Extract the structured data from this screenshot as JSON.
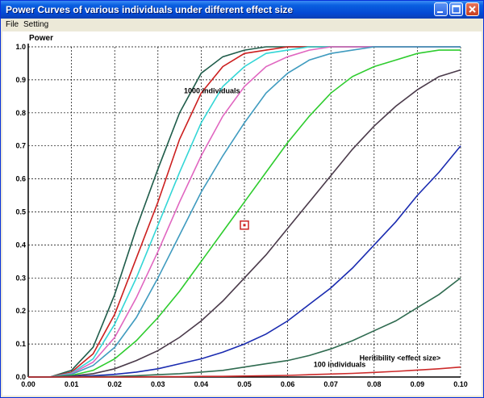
{
  "window": {
    "title": "Power Curves of various individuals under different effect size",
    "buttons": [
      "minimize",
      "maximize",
      "close"
    ]
  },
  "menu": {
    "items": [
      "File",
      "Setting"
    ]
  },
  "colors": {
    "titlebar": "#0a5fe0",
    "marker": "#cc2222"
  },
  "chart_data": {
    "type": "line",
    "ylabel": "Power",
    "xlabel": "Heritibility <effect size>",
    "xlim": [
      0.0,
      0.1
    ],
    "ylim": [
      0.0,
      1.0
    ],
    "xticks": [
      "0.00",
      "0.01",
      "0.02",
      "0.03",
      "0.04",
      "0.05",
      "0.06",
      "0.07",
      "0.08",
      "0.09",
      "0.10"
    ],
    "yticks": [
      "0.0",
      "0.1",
      "0.2",
      "0.3",
      "0.4",
      "0.5",
      "0.6",
      "0.7",
      "0.8",
      "0.9",
      "1.0"
    ],
    "grid": true,
    "annotations": [
      {
        "text": "1000 individuals",
        "x": 0.036,
        "y": 0.86
      },
      {
        "text": "100 individuals",
        "x": 0.066,
        "y": 0.03
      },
      {
        "text": "Heritibility <effect size>",
        "x": 0.086,
        "y": 0.05
      }
    ],
    "marker": {
      "x": 0.05,
      "y": 0.46
    },
    "x": [
      0,
      0.005,
      0.01,
      0.015,
      0.02,
      0.025,
      0.03,
      0.035,
      0.04,
      0.045,
      0.05,
      0.055,
      0.06,
      0.065,
      0.07,
      0.075,
      0.08,
      0.085,
      0.09,
      0.095,
      0.1
    ],
    "series": [
      {
        "color": "#1f5c4a",
        "values": [
          0,
          0,
          0.02,
          0.09,
          0.25,
          0.45,
          0.63,
          0.8,
          0.92,
          0.97,
          0.99,
          1.0,
          1.0,
          1.0,
          1.0,
          1.0,
          1.0,
          1.0,
          1.0,
          1.0,
          1.0
        ]
      },
      {
        "color": "#cc1f1f",
        "values": [
          0,
          0,
          0.015,
          0.07,
          0.19,
          0.36,
          0.53,
          0.72,
          0.86,
          0.94,
          0.98,
          0.99,
          1.0,
          1.0,
          1.0,
          1.0,
          1.0,
          1.0,
          1.0,
          1.0,
          1.0
        ]
      },
      {
        "color": "#33d6d6",
        "values": [
          0,
          0,
          0.012,
          0.055,
          0.16,
          0.3,
          0.46,
          0.62,
          0.77,
          0.88,
          0.94,
          0.98,
          0.99,
          1.0,
          1.0,
          1.0,
          1.0,
          1.0,
          1.0,
          1.0,
          1.0
        ]
      },
      {
        "color": "#e066c0",
        "values": [
          0,
          0,
          0.01,
          0.045,
          0.12,
          0.24,
          0.38,
          0.53,
          0.67,
          0.79,
          0.88,
          0.94,
          0.97,
          0.99,
          1.0,
          1.0,
          1.0,
          1.0,
          1.0,
          1.0,
          1.0
        ]
      },
      {
        "color": "#3f9bbf",
        "values": [
          0,
          0,
          0.008,
          0.035,
          0.09,
          0.18,
          0.3,
          0.43,
          0.56,
          0.67,
          0.77,
          0.86,
          0.92,
          0.96,
          0.98,
          0.99,
          1.0,
          1.0,
          1.0,
          1.0,
          1.0
        ]
      },
      {
        "color": "#2ecc2e",
        "values": [
          0,
          0,
          0.005,
          0.02,
          0.055,
          0.11,
          0.18,
          0.26,
          0.35,
          0.44,
          0.53,
          0.62,
          0.71,
          0.79,
          0.86,
          0.91,
          0.94,
          0.96,
          0.98,
          0.99,
          0.99
        ]
      },
      {
        "color": "#4a3a4a",
        "values": [
          0,
          0,
          0.003,
          0.01,
          0.025,
          0.05,
          0.08,
          0.12,
          0.17,
          0.23,
          0.3,
          0.37,
          0.45,
          0.53,
          0.61,
          0.69,
          0.76,
          0.82,
          0.87,
          0.91,
          0.93
        ]
      },
      {
        "color": "#1a2bb0",
        "values": [
          0,
          0,
          0.001,
          0.004,
          0.008,
          0.015,
          0.025,
          0.04,
          0.055,
          0.075,
          0.1,
          0.13,
          0.17,
          0.22,
          0.27,
          0.33,
          0.4,
          0.47,
          0.55,
          0.62,
          0.7
        ]
      },
      {
        "color": "#2f6b50",
        "values": [
          0,
          0,
          0,
          0.001,
          0.002,
          0.004,
          0.007,
          0.01,
          0.015,
          0.02,
          0.03,
          0.04,
          0.05,
          0.065,
          0.085,
          0.11,
          0.14,
          0.17,
          0.21,
          0.25,
          0.3
        ]
      },
      {
        "color": "#cc2a2a",
        "values": [
          0,
          0,
          0,
          0,
          0,
          0,
          0.001,
          0.001,
          0.002,
          0.002,
          0.003,
          0.004,
          0.005,
          0.007,
          0.009,
          0.011,
          0.014,
          0.017,
          0.021,
          0.025,
          0.03
        ]
      }
    ]
  }
}
